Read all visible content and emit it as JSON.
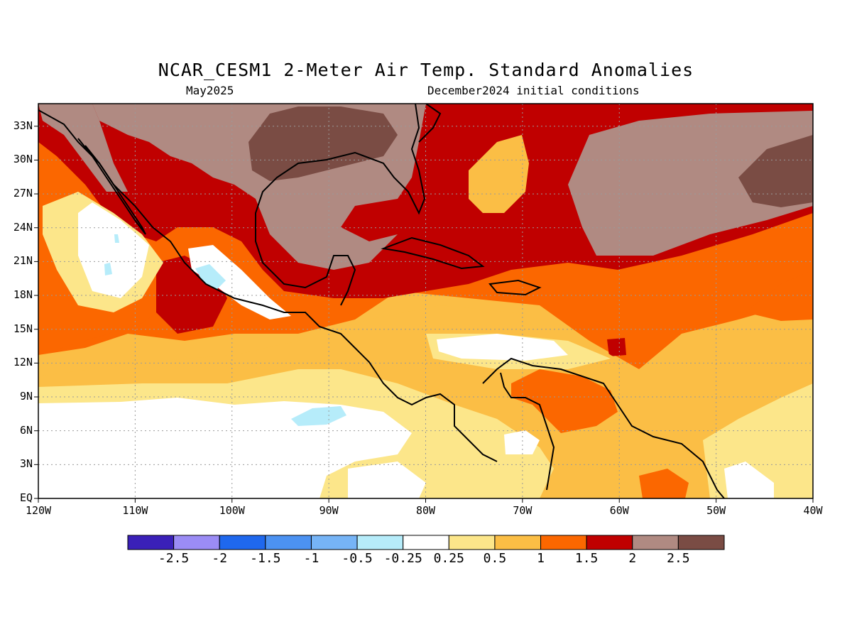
{
  "title": "NCAR_CESM1 2-Meter Air Temp. Standard Anomalies",
  "subtitle_left": "May2025",
  "subtitle_right": "December2024 initial conditions",
  "axes": {
    "lon_labels": [
      "120W",
      "110W",
      "100W",
      "90W",
      "80W",
      "70W",
      "60W",
      "50W",
      "40W"
    ],
    "lon_values": [
      -120,
      -110,
      -100,
      -90,
      -80,
      -70,
      -60,
      -50,
      -40
    ],
    "lat_labels": [
      "EQ",
      "3N",
      "6N",
      "9N",
      "12N",
      "15N",
      "18N",
      "21N",
      "24N",
      "27N",
      "30N",
      "33N"
    ],
    "lat_values": [
      0,
      3,
      6,
      9,
      12,
      15,
      18,
      21,
      24,
      27,
      30,
      33
    ],
    "lon_range": [
      -120,
      -40
    ],
    "lat_range": [
      0,
      35
    ],
    "grid": true
  },
  "colorbar": {
    "labels": [
      "-2.5",
      "-2",
      "-1.5",
      "-1",
      "-0.5",
      "-0.25",
      "0.25",
      "0.5",
      "1",
      "1.5",
      "2",
      "2.5"
    ],
    "colors": [
      "#3a20b8",
      "#9b8cf5",
      "#1f68ee",
      "#4c92f2",
      "#76b4f6",
      "#b6ecfa",
      "#ffffff",
      "#fce68a",
      "#fbbe45",
      "#fb6700",
      "#c00000",
      "#b08a82",
      "#7a4c44"
    ]
  },
  "legend_classes": {
    "white": "#ffffff",
    "lightblue": "#b6ecfa",
    "pale": "#fce68a",
    "yellow": "#fbbe45",
    "orange": "#fb6700",
    "red": "#c00000",
    "taupe": "#b08a82",
    "brown": "#7a4c44"
  }
}
